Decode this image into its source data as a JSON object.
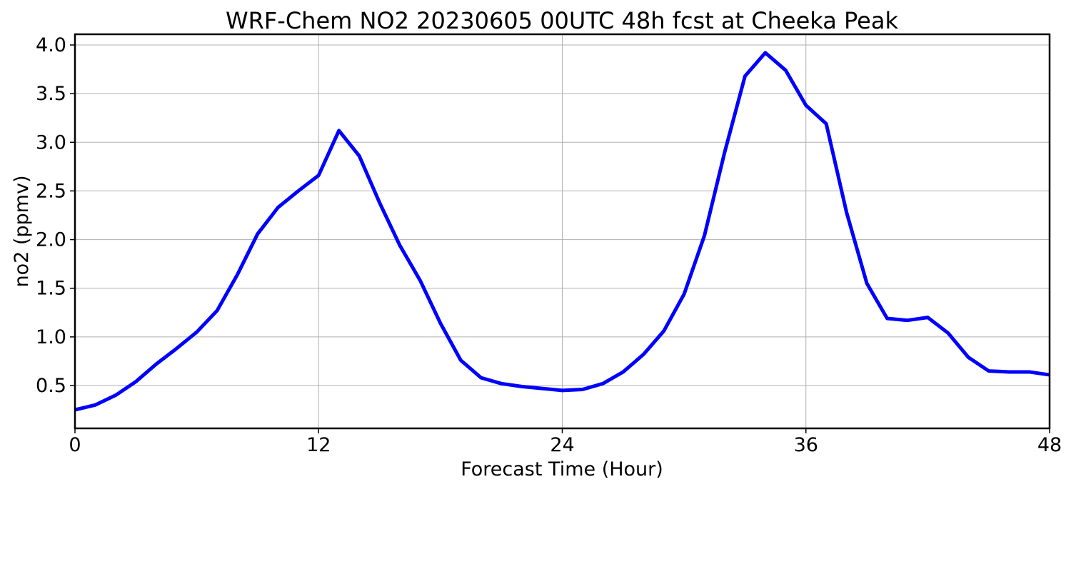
{
  "chart_data": {
    "type": "line",
    "title": "WRF-Chem NO2  20230605 00UTC 48h fcst at Cheeka Peak",
    "xlabel": "Forecast Time (Hour)",
    "ylabel": "no2  (ppmv)",
    "xlim": [
      0,
      48
    ],
    "ylim": [
      0.06,
      4.11
    ],
    "xticks": [
      0,
      12,
      24,
      36,
      48
    ],
    "xtick_labels": [
      "0",
      "12",
      "24",
      "36",
      "48"
    ],
    "yticks": [
      0.5,
      1.0,
      1.5,
      2.0,
      2.5,
      3.0,
      3.5,
      4.0
    ],
    "ytick_labels": [
      "0.5",
      "1.0",
      "1.5",
      "2.0",
      "2.5",
      "3.0",
      "3.5",
      "4.0"
    ],
    "grid": true,
    "series": [
      {
        "color": "#0000ff",
        "x": [
          0,
          1,
          2,
          3,
          4,
          5,
          6,
          7,
          8,
          9,
          10,
          11,
          12,
          13,
          14,
          15,
          16,
          17,
          18,
          19,
          20,
          21,
          22,
          23,
          24,
          25,
          26,
          27,
          28,
          29,
          30,
          31,
          32,
          33,
          34,
          35,
          36,
          37,
          38,
          39,
          40,
          41,
          42,
          43,
          44,
          45,
          46,
          47,
          48
        ],
        "y": [
          0.25,
          0.3,
          0.4,
          0.54,
          0.72,
          0.88,
          1.05,
          1.27,
          1.64,
          2.06,
          2.33,
          2.5,
          2.66,
          3.12,
          2.86,
          2.38,
          1.94,
          1.58,
          1.14,
          0.76,
          0.58,
          0.52,
          0.49,
          0.47,
          0.45,
          0.46,
          0.52,
          0.64,
          0.82,
          1.06,
          1.44,
          2.04,
          2.9,
          3.68,
          3.92,
          3.74,
          3.38,
          3.19,
          2.28,
          1.55,
          1.19,
          1.17,
          1.2,
          1.04,
          0.79,
          0.65,
          0.64,
          0.64,
          0.61
        ]
      }
    ]
  }
}
